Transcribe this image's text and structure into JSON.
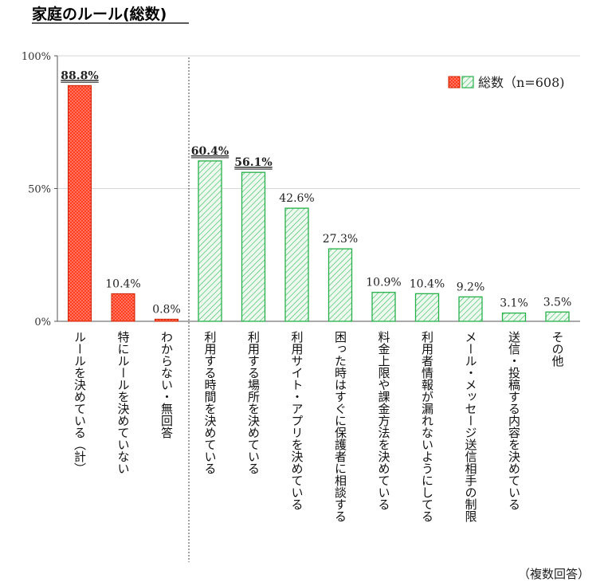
{
  "chart_data": {
    "type": "bar",
    "title": "家庭のルール(総数)",
    "yticks": [
      "0%",
      "50%",
      "100%"
    ],
    "ylim": [
      0,
      100
    ],
    "grid": true,
    "legend": {
      "placement": "top-right",
      "label": "総数（n=608)"
    },
    "note": "（複数回答）",
    "colors": {
      "summary": "#ff3b1f",
      "summary_edge": "#cc2200",
      "detail": "#27b04a",
      "detail_fill": "#e9f7ec"
    },
    "categories": [
      "ルールを決めている（計）",
      "特にルールを決めていない",
      "わからない・無回答",
      "利用する時間を決めている",
      "利用する場所を決めている",
      "利用サイト・アプリを決めている",
      "困った時はすぐに保護者に相談する",
      "料金上限や課金方法を決めている",
      "利用者情報が漏れないようにしてる",
      "メール・メッセージ送信相手の制限",
      "送信・投稿する内容を決めている",
      "その他"
    ],
    "values": [
      88.8,
      10.4,
      0.8,
      60.4,
      56.1,
      42.6,
      27.3,
      10.9,
      10.4,
      9.2,
      3.1,
      3.5
    ],
    "value_labels": [
      "88.8%",
      "10.4%",
      "0.8%",
      "60.4%",
      "56.1%",
      "42.6%",
      "27.3%",
      "10.9%",
      "10.4%",
      "9.2%",
      "3.1%",
      "3.5%"
    ],
    "styles": [
      "summary",
      "summary",
      "summary",
      "detail",
      "detail",
      "detail",
      "detail",
      "detail",
      "detail",
      "detail",
      "detail",
      "detail"
    ],
    "emphasized": [
      true,
      false,
      false,
      true,
      true,
      false,
      false,
      false,
      false,
      false,
      false,
      false
    ]
  }
}
